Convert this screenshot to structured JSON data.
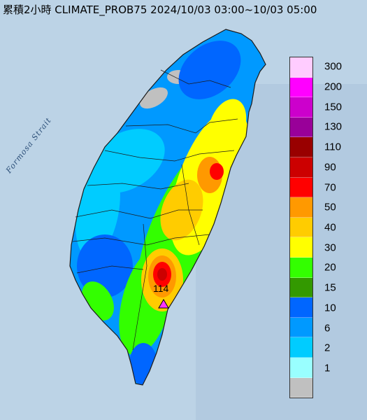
{
  "title": "累積2小時 CLIMATE_PROB75 2024/10/03 03:00~10/03 05:00",
  "sea_label": "Formosa Strait",
  "max_value": "114",
  "legend": [
    {
      "label": "300",
      "color": "#ffccff"
    },
    {
      "label": "200",
      "color": "#ff00ff"
    },
    {
      "label": "150",
      "color": "#cc00cc"
    },
    {
      "label": "130",
      "color": "#990099"
    },
    {
      "label": "110",
      "color": "#990000"
    },
    {
      "label": "90",
      "color": "#cc0000"
    },
    {
      "label": "70",
      "color": "#ff0000"
    },
    {
      "label": "50",
      "color": "#ff9900"
    },
    {
      "label": "40",
      "color": "#ffcc00"
    },
    {
      "label": "30",
      "color": "#ffff00"
    },
    {
      "label": "20",
      "color": "#33ff00"
    },
    {
      "label": "15",
      "color": "#339900"
    },
    {
      "label": "10",
      "color": "#0066ff"
    },
    {
      "label": "6",
      "color": "#0099ff"
    },
    {
      "label": "2",
      "color": "#00ccff"
    },
    {
      "label": "1",
      "color": "#99ffff"
    },
    {
      "label": "",
      "color": "#c0c0c0"
    }
  ]
}
